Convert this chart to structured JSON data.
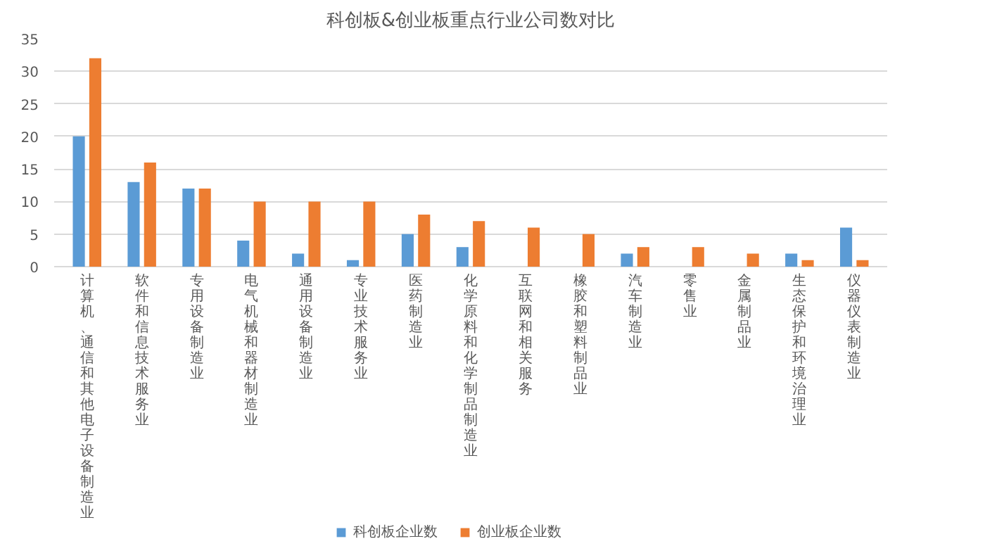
{
  "chart_data": {
    "type": "bar",
    "title": "科创板&创业板重点行业公司数对比",
    "categories": [
      "计算机、通信和其他电子设备制造业",
      "软件和信息技术服务业",
      "专用设备制造业",
      "电气机械和器材制造业",
      "通用设备制造业",
      "专业技术服务业",
      "医药制造业",
      "化学原料和化学制品制造业",
      "互联网和相关服务",
      "橡胶和塑料制品业",
      "汽车制造业",
      "零售业",
      "金属制品业",
      "生态保护和环境治理业",
      "仪器仪表制造业"
    ],
    "series": [
      {
        "name": "科创板企业数",
        "color": "#5b9bd5",
        "values": [
          20,
          13,
          12,
          4,
          2,
          1,
          5,
          3,
          0,
          0,
          2,
          0,
          0,
          2,
          6
        ]
      },
      {
        "name": "创业板企业数",
        "color": "#ed7d31",
        "values": [
          32,
          16,
          12,
          10,
          10,
          10,
          8,
          7,
          6,
          5,
          3,
          3,
          2,
          1,
          1
        ]
      }
    ],
    "ylim": [
      0,
      35
    ],
    "yticks": [
      0,
      5,
      10,
      15,
      20,
      25,
      30,
      35
    ],
    "grid": "y",
    "legend": "bottom"
  }
}
